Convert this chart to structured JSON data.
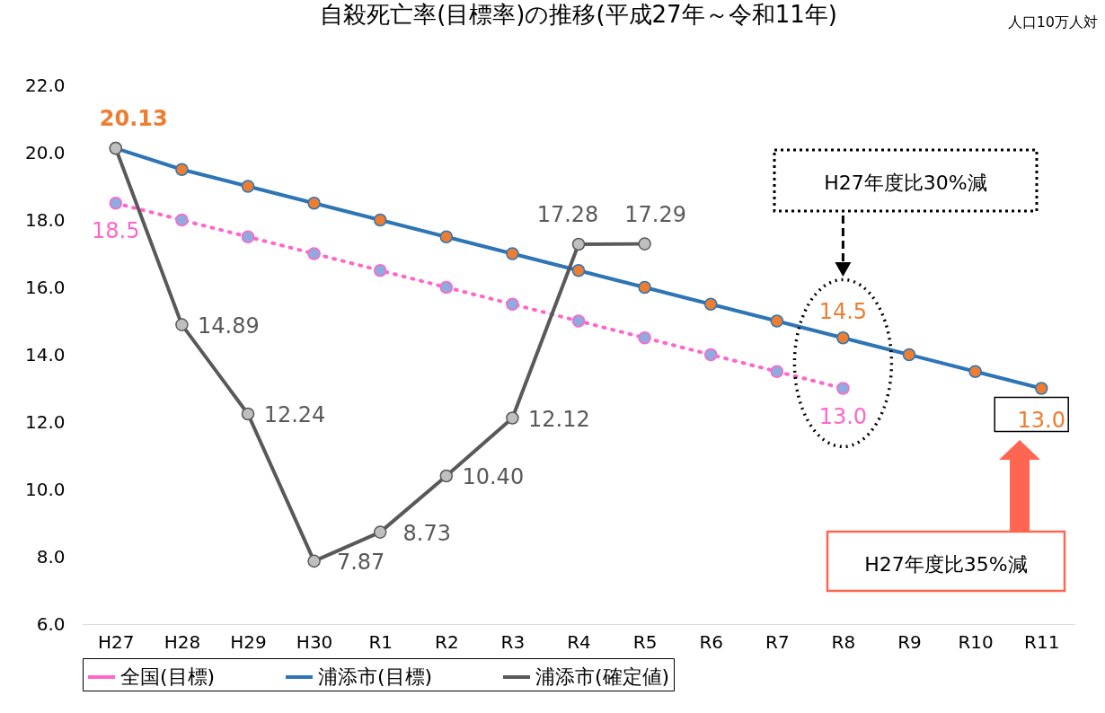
{
  "chart_data": {
    "type": "line",
    "title": "自殺死亡率(目標率)の推移(平成27年～令和11年)",
    "categories": [
      "H27",
      "H28",
      "H29",
      "H30",
      "R1",
      "R2",
      "R3",
      "R4",
      "R5",
      "R6",
      "R7",
      "R8",
      "R9",
      "R10",
      "R11"
    ],
    "series": [
      {
        "name": "全国(目標)",
        "color": "#ff66cc",
        "line_style": "dotted",
        "values": [
          18.5,
          18.0,
          17.5,
          17.0,
          16.5,
          16.0,
          15.5,
          15.0,
          14.5,
          14.0,
          13.5,
          13.0,
          null,
          null,
          null
        ],
        "value_labels": [
          "18.5",
          null,
          null,
          null,
          null,
          null,
          null,
          null,
          null,
          null,
          null,
          "13.0",
          null,
          null,
          null
        ]
      },
      {
        "name": "浦添市(目標)",
        "color": "#2e75b6",
        "line_style": "solid",
        "values": [
          20.13,
          19.5,
          19.0,
          18.5,
          18.0,
          17.5,
          17.0,
          16.5,
          16.0,
          15.5,
          15.0,
          14.5,
          14.0,
          13.5,
          13.0
        ],
        "value_labels": [
          "20.13",
          null,
          null,
          null,
          null,
          null,
          null,
          null,
          null,
          null,
          null,
          "14.5",
          null,
          null,
          "13.0"
        ]
      },
      {
        "name": "浦添市(確定値)",
        "color": "#595959",
        "line_style": "solid",
        "values": [
          20.13,
          14.89,
          12.24,
          7.87,
          8.73,
          10.4,
          12.12,
          17.28,
          17.29,
          null,
          null,
          null,
          null,
          null,
          null
        ],
        "value_labels": [
          null,
          "14.89",
          "12.24",
          "7.87",
          "8.73",
          "10.40",
          "12.12",
          "17.28",
          "17.29",
          null,
          null,
          null,
          null,
          null,
          null
        ]
      }
    ],
    "ylim": [
      6.0,
      22.0
    ],
    "yticks": [
      {
        "value": 6,
        "label": "6.0"
      },
      {
        "value": 8,
        "label": "8.0"
      },
      {
        "value": 10,
        "label": "10.0"
      },
      {
        "value": 12,
        "label": "12.0"
      },
      {
        "value": 14,
        "label": "14.0"
      },
      {
        "value": 16,
        "label": "16.0"
      },
      {
        "value": 18,
        "label": "18.0"
      },
      {
        "value": 20,
        "label": "20.0"
      },
      {
        "value": 22,
        "label": "22.0"
      }
    ],
    "grid": false,
    "marker": "circle",
    "legend": "bottom",
    "annotations": [
      "人口10万人対",
      "H27年度比30%減",
      "H27年度比35%減"
    ]
  }
}
